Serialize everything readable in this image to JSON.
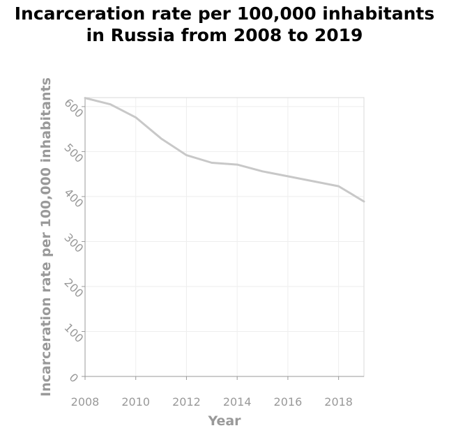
{
  "chart_data": {
    "type": "line",
    "title_line1": "Incarceration rate per 100,000 inhabitants",
    "title_line2": "in Russia from 2008 to 2019",
    "xlabel": "Year",
    "ylabel": "Incarceration rate per 100,000 inhabitants",
    "x_ticks": [
      "2008",
      "2010",
      "2012",
      "2014",
      "2016",
      "2018"
    ],
    "y_ticks": [
      "0",
      "100",
      "200",
      "300",
      "400",
      "500",
      "600"
    ],
    "xlim": [
      2008,
      2019
    ],
    "ylim": [
      0,
      620
    ],
    "grid": true,
    "line_color": "#c8c8c8",
    "series": [
      {
        "x": [
          2008,
          2009,
          2010,
          2011,
          2012,
          2013,
          2014,
          2015,
          2016,
          2017,
          2018,
          2019
        ],
        "y": [
          619,
          605,
          576,
          529,
          492,
          475,
          471,
          456,
          445,
          434,
          423,
          389
        ]
      }
    ]
  }
}
